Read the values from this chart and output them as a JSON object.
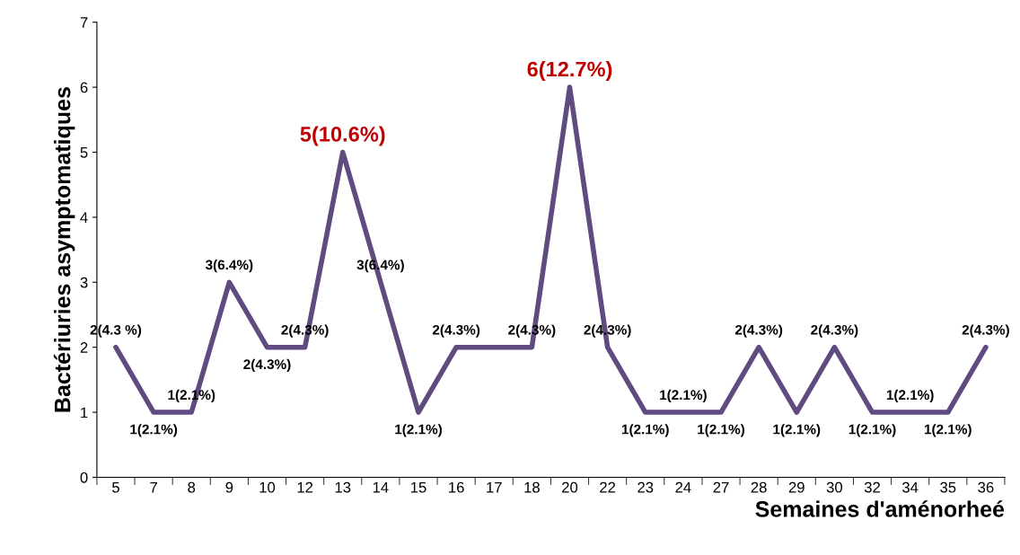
{
  "chart_data": {
    "type": "line",
    "xlabel": "Semaines d'aménorheé",
    "ylabel": "Bactériuries asymptomatiques",
    "categories": [
      "5",
      "7",
      "8",
      "9",
      "10",
      "12",
      "13",
      "14",
      "15",
      "16",
      "17",
      "18",
      "20",
      "22",
      "23",
      "24",
      "27",
      "28",
      "29",
      "30",
      "32",
      "34",
      "35",
      "36"
    ],
    "series": [
      {
        "color": "#5f4b7f",
        "values": [
          2,
          1,
          1,
          3,
          2,
          2,
          5,
          3,
          1,
          2,
          2,
          2,
          6,
          2,
          1,
          1,
          1,
          2,
          1,
          2,
          1,
          1,
          1,
          2
        ],
        "value_labels": [
          "2(4.3 %)",
          "1(2.1%)",
          "1(2.1%)",
          "3(6.4%)",
          "2(4.3%)",
          "2(4.3%)",
          "5(10.6%)",
          "3(6.4%)",
          "1(2.1%)",
          "2(4.3%)",
          null,
          "2(4.3%)",
          "6(12.7%)",
          "2(4.3%)",
          "1(2.1%)",
          "1(2.1%)",
          "1(2.1%)",
          "2(4.3%)",
          "1(2.1%)",
          "2(4.3%)",
          "1(2.1%)",
          "1(2.1%)",
          "1(2.1%)",
          "2(4.3%)"
        ]
      }
    ],
    "ylim": [
      0,
      7
    ],
    "yticks": [
      0,
      1,
      2,
      3,
      4,
      5,
      6,
      7
    ],
    "grid": false,
    "legend": false,
    "marker": "none",
    "line_style": "solid"
  }
}
